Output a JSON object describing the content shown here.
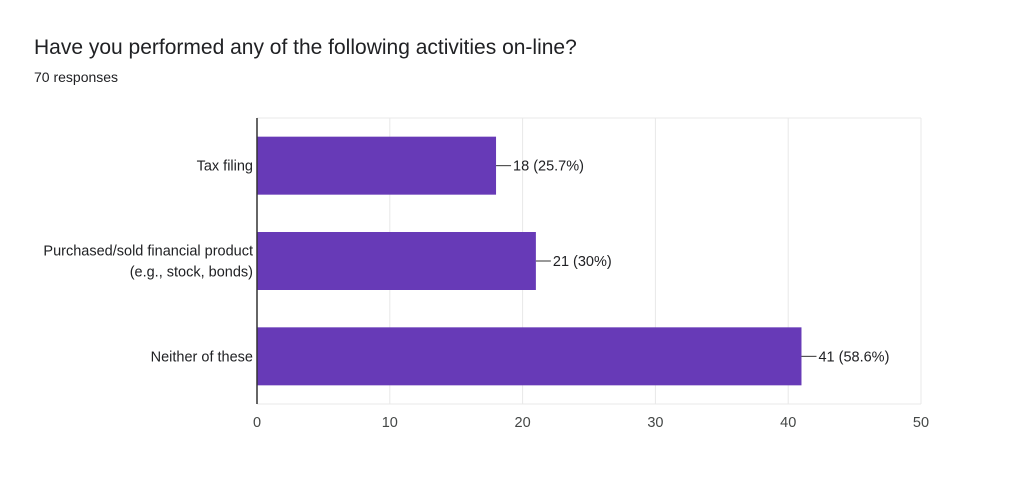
{
  "title": "Have you performed any of the following activities on-line?",
  "subtitle": "70 responses",
  "colors": {
    "bar": "#673ab7",
    "grid": "#e8e8e8",
    "axis": "#333333"
  },
  "chart_data": {
    "type": "bar",
    "orientation": "horizontal",
    "categories": [
      [
        "Tax filing"
      ],
      [
        "Purchased/sold financial product",
        "(e.g., stock, bonds)"
      ],
      [
        "Neither of these"
      ]
    ],
    "values": [
      18,
      21,
      41
    ],
    "data_labels": [
      "18 (25.7%)",
      "21 (30%)",
      "41 (58.6%)"
    ],
    "xlim": [
      0,
      50
    ],
    "xticks": [
      0,
      10,
      20,
      30,
      40,
      50
    ],
    "grid": true,
    "legend": "none"
  }
}
